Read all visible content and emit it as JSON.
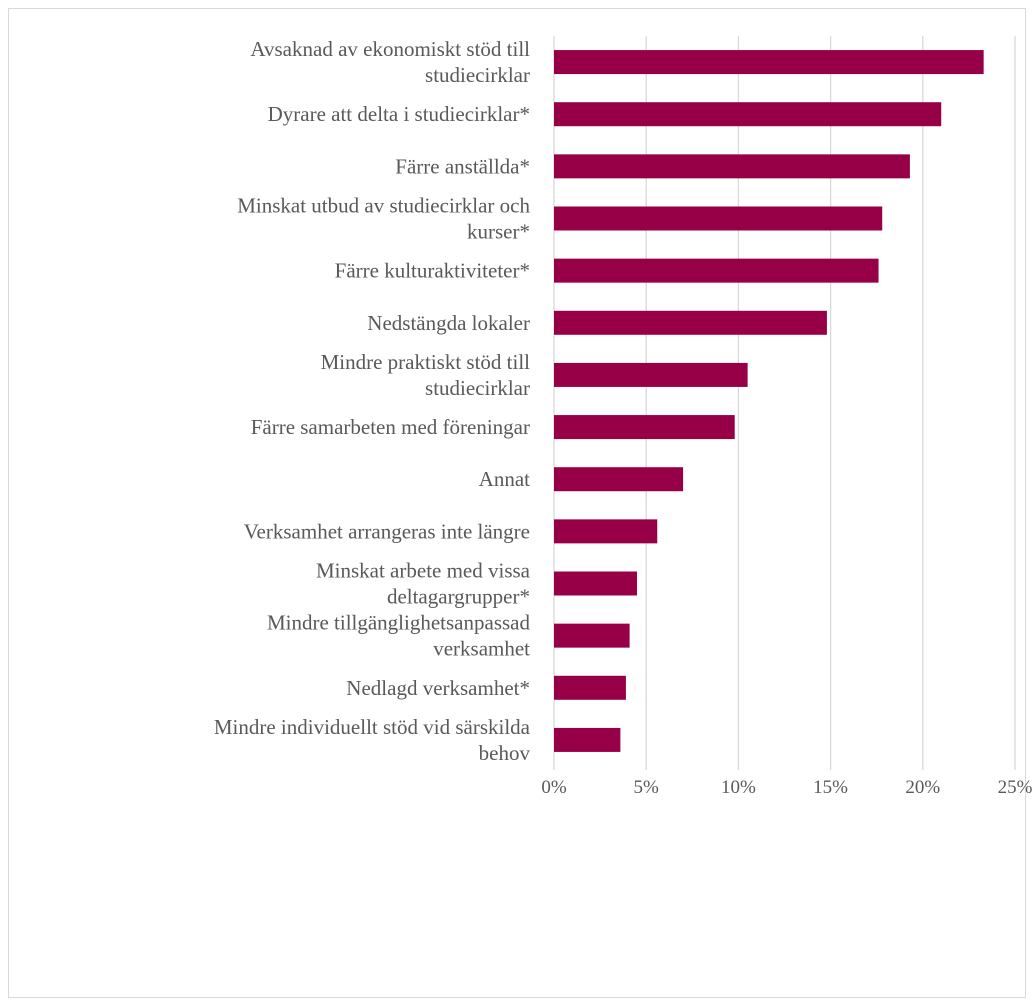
{
  "chart_data": {
    "type": "bar",
    "orientation": "horizontal",
    "title": "",
    "xlabel": "",
    "ylabel": "",
    "xlim": [
      0,
      25
    ],
    "x_ticks": [
      "0%",
      "5%",
      "10%",
      "15%",
      "20%",
      "25%"
    ],
    "grid": true,
    "legend": "none",
    "bar_color": "#970047",
    "categories": [
      [
        "Avsaknad av ekonomiskt stöd till",
        "studiecirklar"
      ],
      [
        "Dyrare att delta i studiecirklar*"
      ],
      [
        "Färre anställda*"
      ],
      [
        "Minskat utbud av studiecirklar och",
        "kurser*"
      ],
      [
        "Färre kulturaktiviteter*"
      ],
      [
        "Nedstängda lokaler"
      ],
      [
        "Mindre praktiskt stöd till",
        "studiecirklar"
      ],
      [
        "Färre samarbeten med föreningar"
      ],
      [
        "Annat"
      ],
      [
        "Verksamhet arrangeras inte längre"
      ],
      [
        "Minskat arbete med vissa",
        "deltagargrupper*"
      ],
      [
        "Mindre tillgänglighetsanpassad",
        "verksamhet"
      ],
      [
        "Nedlagd verksamhet*"
      ],
      [
        "Mindre individuellt stöd vid särskilda",
        "behov"
      ]
    ],
    "values": [
      23.3,
      21.0,
      19.3,
      17.8,
      17.6,
      14.8,
      10.5,
      9.8,
      7.0,
      5.6,
      4.5,
      4.1,
      3.9,
      3.6
    ]
  }
}
